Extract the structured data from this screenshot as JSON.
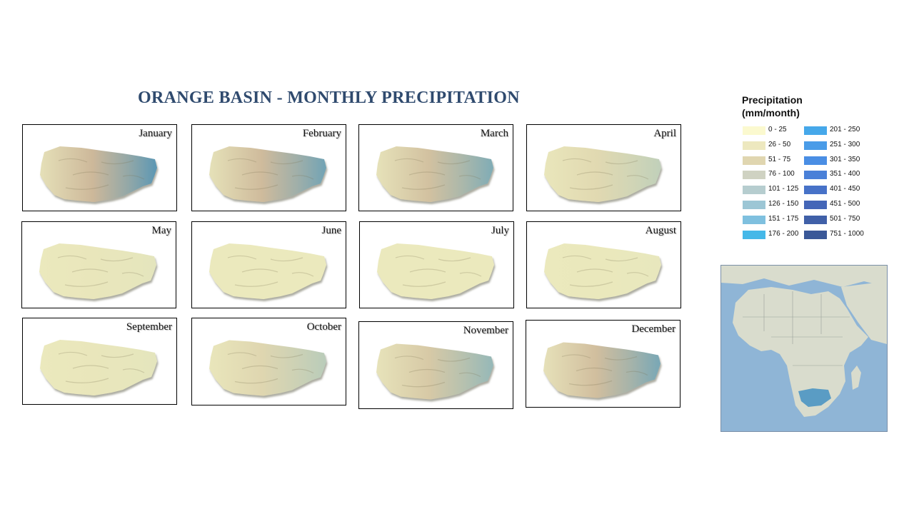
{
  "title": "ORANGE BASIN - MONTHLY PRECIPITATION",
  "months": [
    {
      "name": "January",
      "wetness": 1.0
    },
    {
      "name": "February",
      "wetness": 0.85
    },
    {
      "name": "March",
      "wetness": 0.75
    },
    {
      "name": "April",
      "wetness": 0.3
    },
    {
      "name": "May",
      "wetness": 0.05
    },
    {
      "name": "June",
      "wetness": 0.0
    },
    {
      "name": "July",
      "wetness": 0.0
    },
    {
      "name": "August",
      "wetness": 0.02
    },
    {
      "name": "September",
      "wetness": 0.05
    },
    {
      "name": "October",
      "wetness": 0.35
    },
    {
      "name": "November",
      "wetness": 0.6
    },
    {
      "name": "December",
      "wetness": 0.8
    }
  ],
  "legend": {
    "title_line1": "Precipitation",
    "title_line2": "(mm/month)",
    "classes": [
      {
        "label": "0 - 25",
        "color": "#fbf9cf"
      },
      {
        "label": "26 - 50",
        "color": "#ede8bf"
      },
      {
        "label": "51 - 75",
        "color": "#e0d6b0"
      },
      {
        "label": "76 - 100",
        "color": "#cfd2c2"
      },
      {
        "label": "101 - 125",
        "color": "#b6cdcf"
      },
      {
        "label": "126 - 150",
        "color": "#9cc6d5"
      },
      {
        "label": "151 - 175",
        "color": "#7fc0df"
      },
      {
        "label": "176 - 200",
        "color": "#45b8e8"
      },
      {
        "label": "201 - 250",
        "color": "#46a8ea"
      },
      {
        "label": "251 - 300",
        "color": "#4a9ce8"
      },
      {
        "label": "301 - 350",
        "color": "#4a8ee4"
      },
      {
        "label": "351 - 400",
        "color": "#4a80d8"
      },
      {
        "label": "401 - 450",
        "color": "#4772c8"
      },
      {
        "label": "451 - 500",
        "color": "#4466b8"
      },
      {
        "label": "501 - 750",
        "color": "#4060a8"
      },
      {
        "label": "751 - 1000",
        "color": "#3a5898"
      }
    ]
  },
  "inset_map": {
    "ocean_color": "#8fb5d6",
    "land_color": "#d9dccd",
    "highlight_color": "#5a9cc4"
  }
}
